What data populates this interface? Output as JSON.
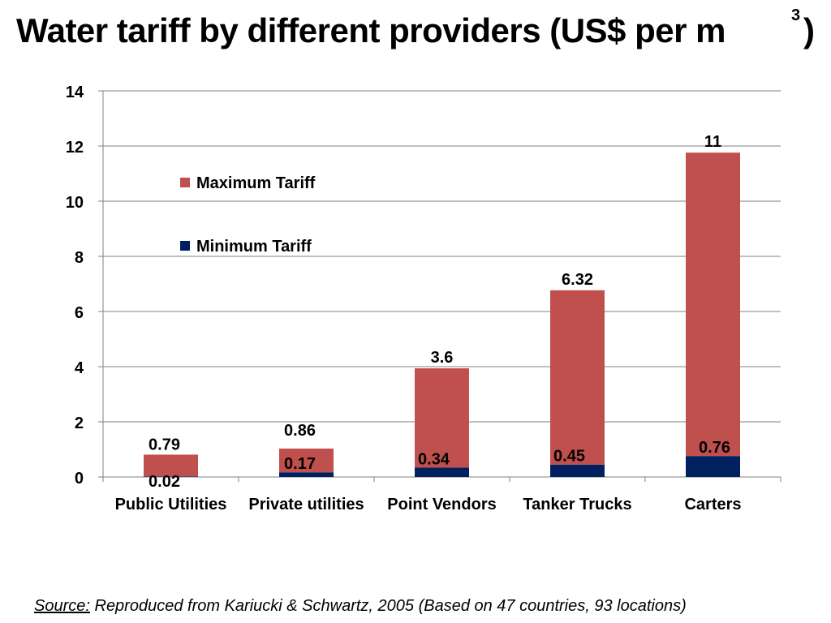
{
  "title": {
    "text": "Water tariff by different providers (US$  per m",
    "superscript": "3",
    "close_paren": ")"
  },
  "source": {
    "label": "Source:",
    "text": " Reproduced from Kariucki & Schwartz, 2005 (Based on 47 countries, 93 locations)"
  },
  "chart_data": {
    "type": "bar",
    "stacked": true,
    "title": "Water tariff by different providers (US$  per m3)",
    "xlabel": "",
    "ylabel": "",
    "ylim": [
      0,
      14
    ],
    "yticks": [
      0,
      2,
      4,
      6,
      8,
      10,
      12,
      14
    ],
    "grid": true,
    "legend_position": "upper-left",
    "categories": [
      "Public Utilities",
      "Private utilities",
      "Point Vendors",
      "Tanker Trucks",
      "Carters"
    ],
    "series": [
      {
        "name": "Minimum Tariff",
        "color": "#002060",
        "values": [
          0.02,
          0.17,
          0.34,
          0.45,
          0.76
        ],
        "labels": [
          "0.02",
          "0.17",
          "0.34",
          "0.45",
          "0.76"
        ]
      },
      {
        "name": "Maximum Tariff",
        "color": "#c0504d",
        "values": [
          0.79,
          0.86,
          3.6,
          6.32,
          11
        ],
        "labels": [
          "0.79",
          "0.86",
          "3.6",
          "6.32",
          "11"
        ]
      }
    ]
  }
}
